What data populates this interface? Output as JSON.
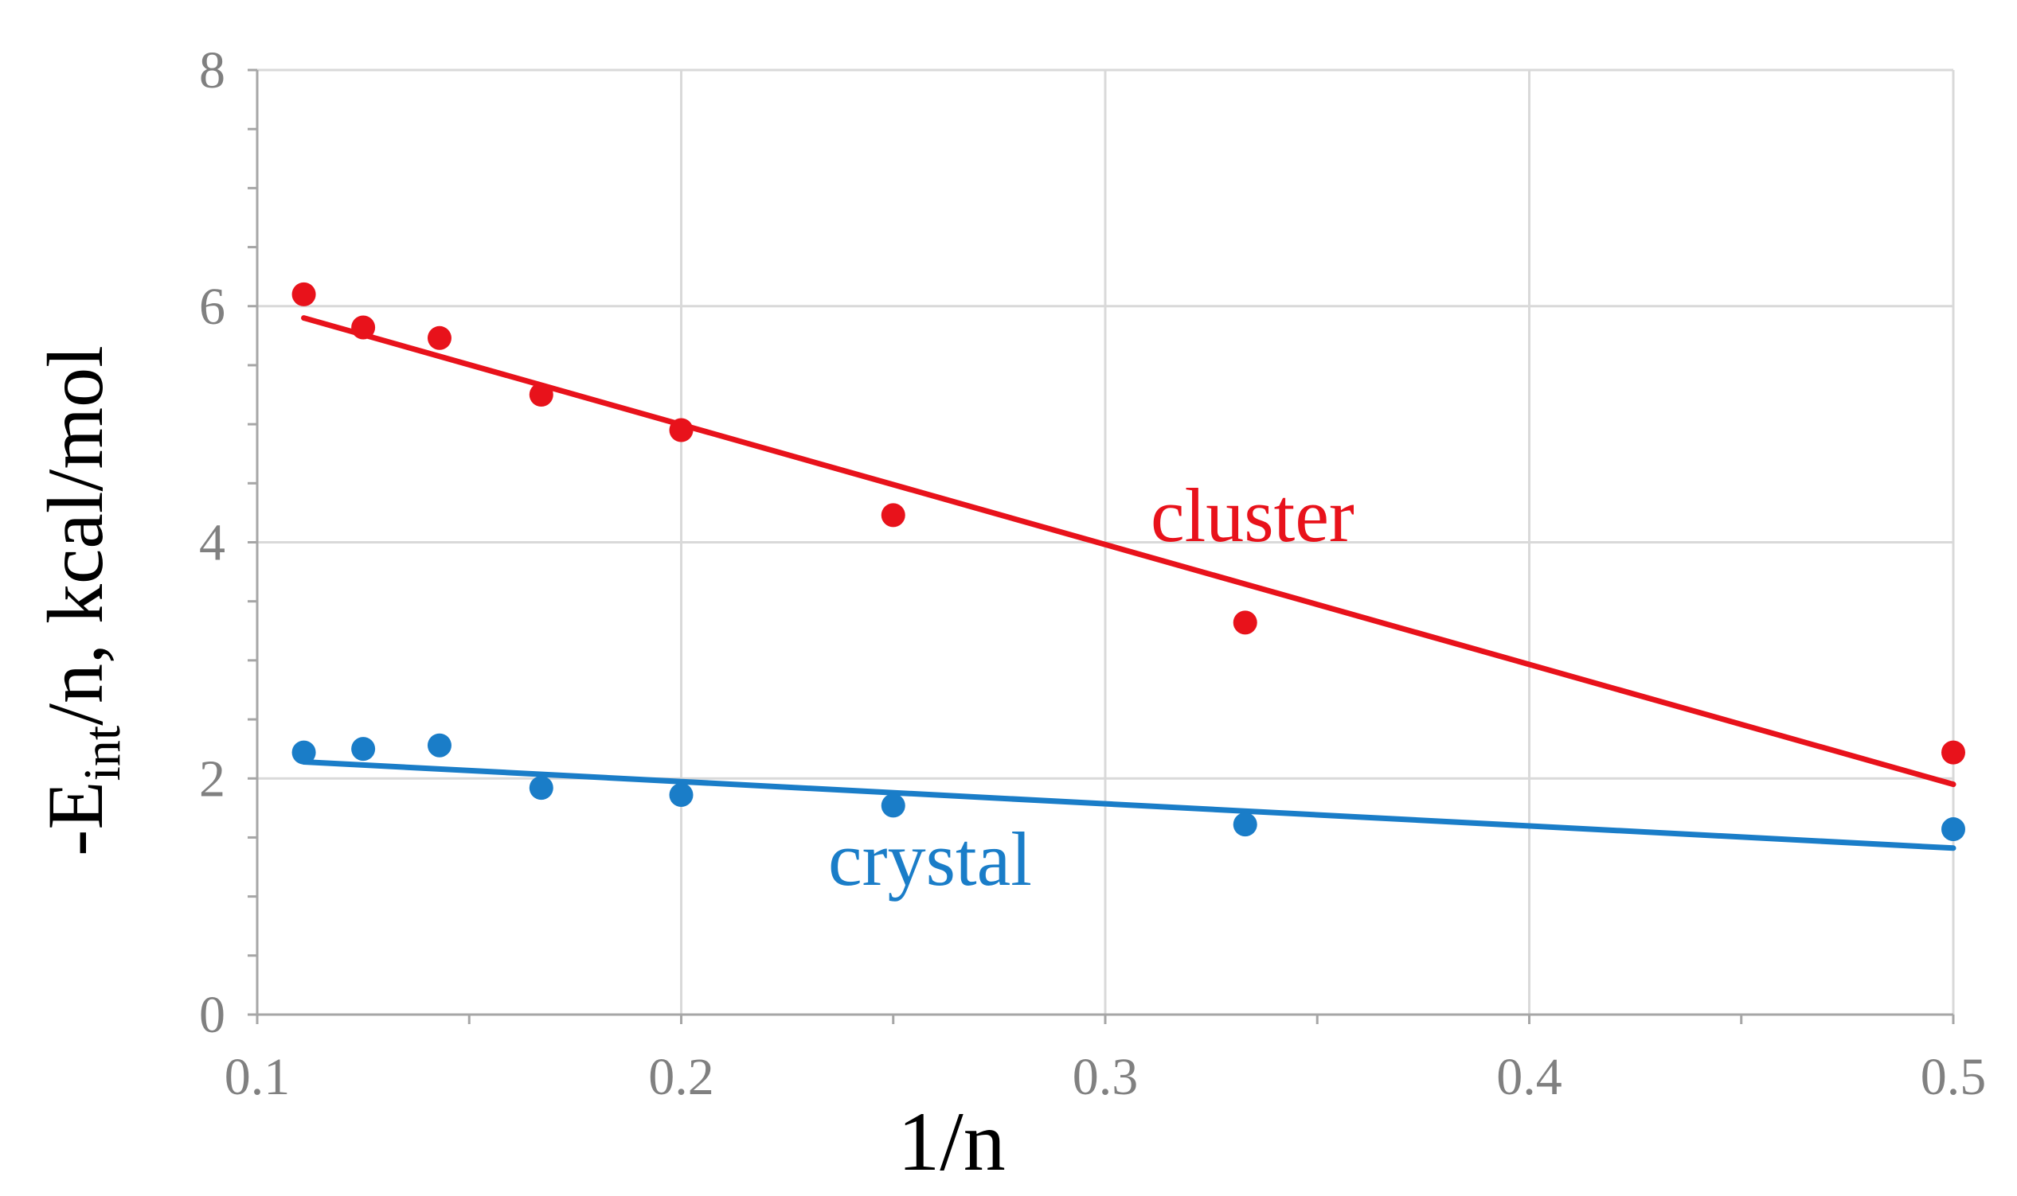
{
  "chart_data": {
    "type": "scatter",
    "title": "",
    "xlabel": "1/n",
    "ylabel": {
      "prefix": "-E",
      "subscript": "int",
      "suffix": "/n, kcal/mol"
    },
    "xlim": [
      0.1,
      0.5
    ],
    "ylim": [
      0,
      8
    ],
    "x_ticks": [
      0.1,
      0.2,
      0.3,
      0.4,
      0.5
    ],
    "x_tick_labels": [
      "0.1",
      "0.2",
      "0.3",
      "0.4",
      "0.5"
    ],
    "y_ticks": [
      0,
      2,
      4,
      6,
      8
    ],
    "y_tick_labels": [
      "0",
      "2",
      "4",
      "6",
      "8"
    ],
    "grid": true,
    "series": [
      {
        "name": "cluster",
        "color": "#e8121b",
        "x": [
          0.111,
          0.125,
          0.143,
          0.167,
          0.2,
          0.25,
          0.333,
          0.5
        ],
        "y": [
          6.1,
          5.82,
          5.73,
          5.25,
          4.95,
          4.23,
          3.32,
          2.22
        ],
        "trendline": {
          "x": [
            0.111,
            0.5
          ],
          "y": [
            5.9,
            1.95
          ]
        }
      },
      {
        "name": "crystal",
        "color": "#1a7dc8",
        "x": [
          0.111,
          0.125,
          0.143,
          0.167,
          0.2,
          0.25,
          0.333,
          0.5
        ],
        "y": [
          2.22,
          2.25,
          2.28,
          1.92,
          1.86,
          1.77,
          1.61,
          1.57
        ],
        "trendline": {
          "x": [
            0.111,
            0.5
          ],
          "y": [
            2.14,
            1.41
          ]
        }
      }
    ]
  }
}
